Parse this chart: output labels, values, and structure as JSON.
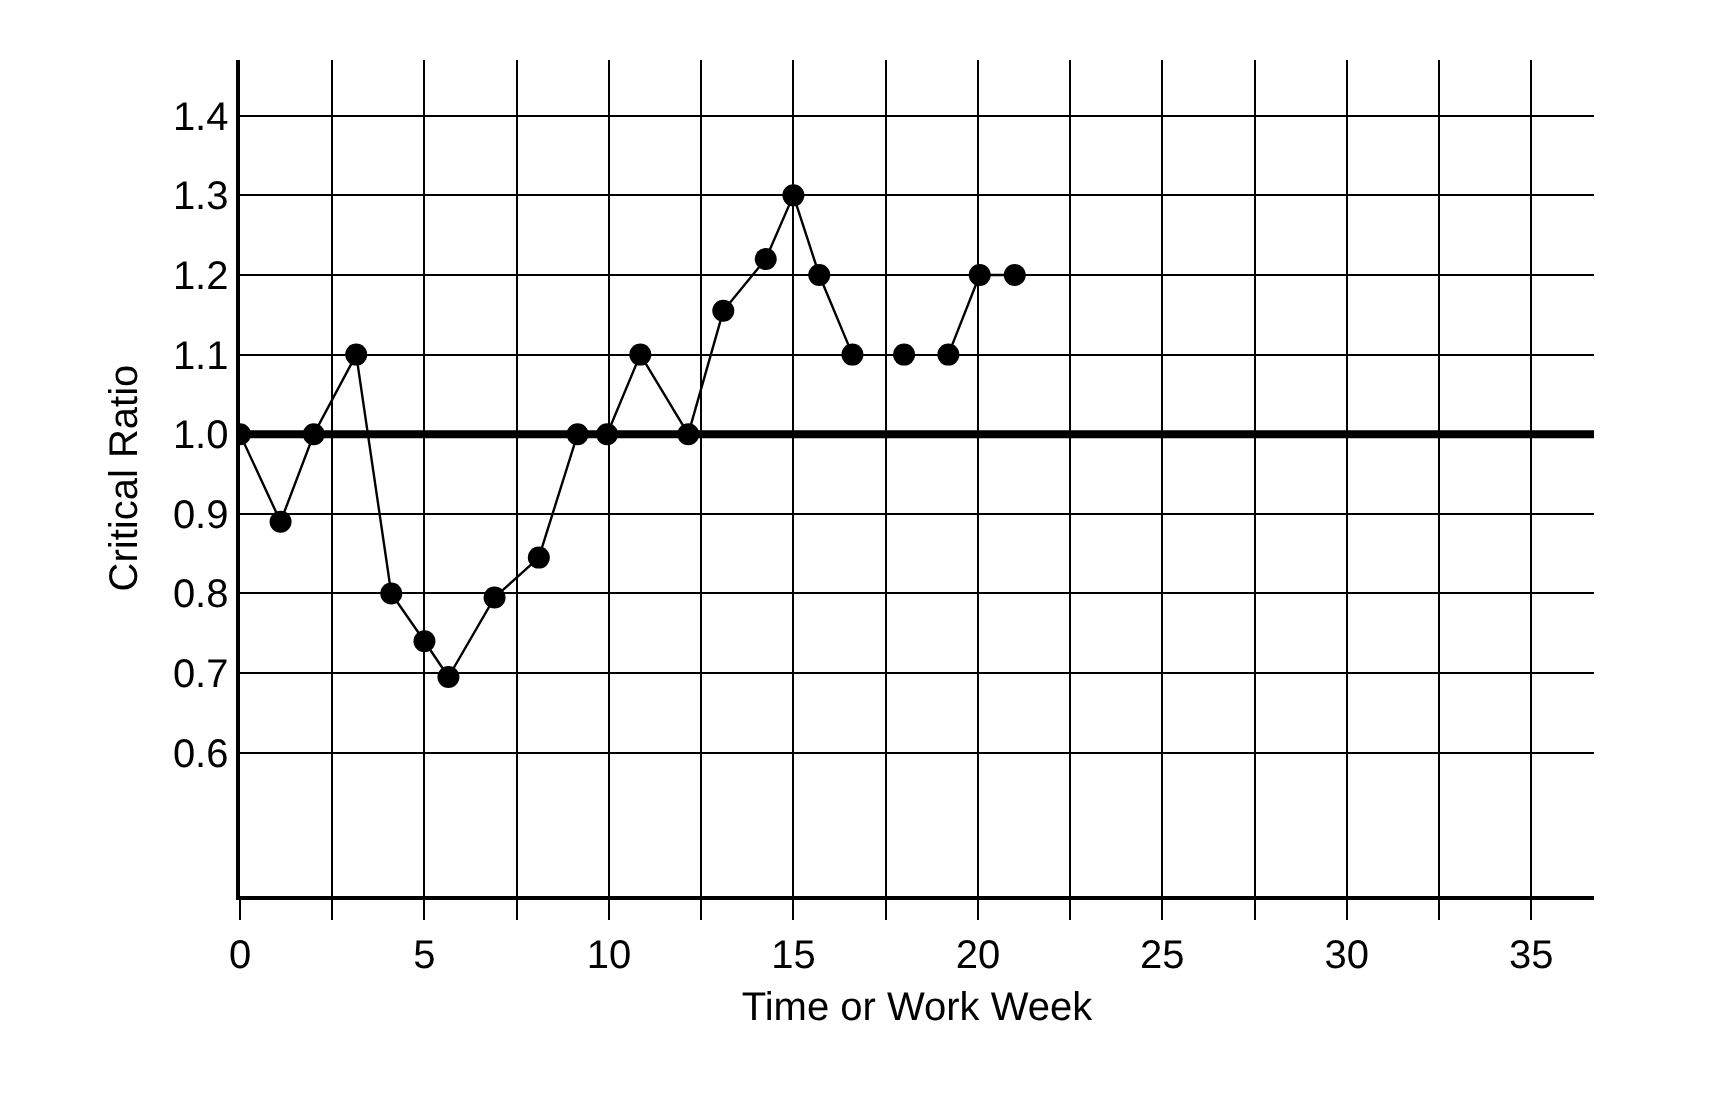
{
  "chart_data": {
    "type": "line",
    "xlabel": "Time or Work Week",
    "ylabel": "Critical Ratio",
    "x": [
      0,
      1.1,
      2,
      3.15,
      4.1,
      5,
      5.65,
      6.9,
      8.1,
      9.15,
      9.95,
      10.85,
      12.15,
      13.1,
      14.25,
      15,
      15.7,
      16.6,
      17.3,
      18,
      18.6,
      19.2,
      20.05,
      21
    ],
    "series": [
      {
        "color": "#000000",
        "values": [
          1.0,
          0.89,
          1.0,
          1.1,
          0.8,
          0.74,
          0.695,
          0.795,
          0.845,
          1.0,
          1.0,
          1.1,
          1.0,
          1.155,
          1.22,
          1.3,
          1.2,
          1.1,
          null,
          1.1,
          null,
          1.1,
          1.2,
          1.2
        ]
      }
    ],
    "xlim": [
      0,
      36.7
    ],
    "ylim": [
      0.42,
      1.47
    ],
    "xticks": [
      0,
      {
        "value": 2.5,
        "label": null
      },
      5,
      {
        "value": 7.5,
        "label": null
      },
      10,
      {
        "value": 12.5,
        "label": null
      },
      15,
      {
        "value": 17.5,
        "label": null
      },
      20,
      {
        "value": 22.5,
        "label": null
      },
      25,
      {
        "value": 27.5,
        "label": null
      },
      30,
      {
        "value": 32.5,
        "label": null
      },
      35
    ],
    "yticks": [
      {
        "value": 0.6,
        "label": "0.6"
      },
      {
        "value": 0.7,
        "label": "0.7"
      },
      {
        "value": 0.8,
        "label": "0.8"
      },
      {
        "value": 0.9,
        "label": "0.9"
      },
      {
        "value": 1.0,
        "label": "1.0"
      },
      {
        "value": 1.1,
        "label": "1.1"
      },
      {
        "value": 1.2,
        "label": "1.2"
      },
      {
        "value": 1.3,
        "label": "1.3"
      },
      {
        "value": 1.4,
        "label": "1.4"
      }
    ],
    "ref_lines": [
      {
        "axis": "y",
        "value": 1.0,
        "color": "#000000"
      }
    ],
    "grid": true,
    "marker": "circle",
    "line_style": "solid"
  }
}
